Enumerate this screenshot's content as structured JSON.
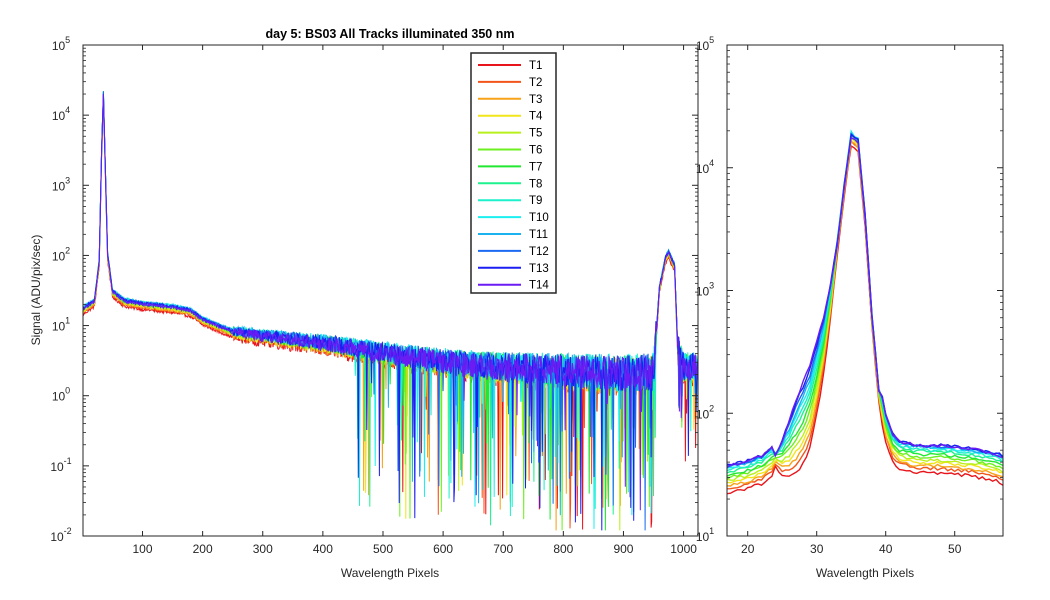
{
  "chart_data": [
    {
      "type": "line",
      "title": "day 5: BS03   All Tracks illuminated   350 nm",
      "xlabel": "Wavelength Pixels",
      "ylabel": "Signal (ADU/pix/sec)",
      "xlim": [
        1,
        1024
      ],
      "ylim": [
        0.01,
        100000
      ],
      "yscale": "log",
      "grid": false,
      "legend_placement": "top-center",
      "x_ticks": [
        100,
        200,
        300,
        400,
        500,
        600,
        700,
        800,
        900,
        1000
      ],
      "x_tick_labels": [
        "100",
        "200",
        "300",
        "400",
        "500",
        "600",
        "700",
        "800",
        "900",
        "1000"
      ],
      "y_ticks": [
        0.01,
        0.1,
        1,
        10,
        100,
        1000,
        10000,
        100000
      ],
      "y_tick_labels": [
        {
          "base": "10",
          "exp": "-2"
        },
        {
          "base": "10",
          "exp": "-1"
        },
        {
          "base": "10",
          "exp": "0"
        },
        {
          "base": "10",
          "exp": "1"
        },
        {
          "base": "10",
          "exp": "2"
        },
        {
          "base": "10",
          "exp": "3"
        },
        {
          "base": "10",
          "exp": "4"
        },
        {
          "base": "10",
          "exp": "5"
        }
      ],
      "series_shape": {
        "x": [
          1,
          20,
          28,
          32,
          35,
          38,
          42,
          50,
          70,
          100,
          150,
          180,
          200,
          250,
          300,
          400,
          500,
          600,
          700,
          800,
          900,
          950,
          960,
          970,
          975,
          985,
          990,
          1000,
          1024
        ],
        "y": [
          17,
          22,
          80,
          3000,
          20000,
          2000,
          100,
          30,
          22,
          20,
          18,
          16,
          12,
          8,
          7,
          5.5,
          4,
          3,
          2.5,
          2.2,
          2,
          2,
          35,
          90,
          110,
          70,
          5,
          2.5,
          2.5
        ]
      },
      "series": [
        {
          "name": "T1",
          "color": "#e8141b",
          "scale": 0.85
        },
        {
          "name": "T2",
          "color": "#f2551c",
          "scale": 0.9
        },
        {
          "name": "T3",
          "color": "#f7a219",
          "scale": 0.92
        },
        {
          "name": "T4",
          "color": "#f2e51c",
          "scale": 0.95
        },
        {
          "name": "T5",
          "color": "#b9f01c",
          "scale": 0.97
        },
        {
          "name": "T6",
          "color": "#6cf01f",
          "scale": 1.0
        },
        {
          "name": "T7",
          "color": "#23e832",
          "scale": 1.02
        },
        {
          "name": "T8",
          "color": "#1cf28d",
          "scale": 1.05
        },
        {
          "name": "T9",
          "color": "#1cf0cc",
          "scale": 1.06
        },
        {
          "name": "T10",
          "color": "#1ceff0",
          "scale": 1.07
        },
        {
          "name": "T11",
          "color": "#1ab2f0",
          "scale": 1.06
        },
        {
          "name": "T12",
          "color": "#1c6af2",
          "scale": 1.05
        },
        {
          "name": "T13",
          "color": "#1c1ef2",
          "scale": 1.04
        },
        {
          "name": "T14",
          "color": "#6a1cf2",
          "scale": 1.0
        }
      ]
    },
    {
      "type": "line",
      "title": "",
      "xlabel": "Wavelength Pixels",
      "ylabel": "",
      "xlim": [
        17,
        57
      ],
      "ylim": [
        10,
        100000
      ],
      "yscale": "log",
      "grid": false,
      "x_ticks": [
        20,
        30,
        40,
        50
      ],
      "x_tick_labels": [
        "20",
        "30",
        "40",
        "50"
      ],
      "y_ticks": [
        10,
        100,
        1000,
        10000,
        100000
      ],
      "y_tick_labels": [
        {
          "base": "10",
          "exp": "1"
        },
        {
          "base": "10",
          "exp": "2"
        },
        {
          "base": "10",
          "exp": "3"
        },
        {
          "base": "10",
          "exp": "4"
        },
        {
          "base": "10",
          "exp": "5"
        }
      ],
      "series_shape": {
        "x": [
          17,
          18,
          20,
          22,
          23,
          25,
          26,
          27,
          28,
          29,
          30,
          31,
          32,
          33,
          34,
          35,
          36,
          37,
          38,
          39,
          40,
          41,
          42,
          44,
          46,
          48,
          50,
          52,
          54,
          56,
          57
        ],
        "y": [
          30,
          31,
          33,
          36,
          40,
          48,
          58,
          75,
          95,
          130,
          220,
          400,
          900,
          2400,
          7000,
          18000,
          16000,
          4000,
          600,
          150,
          80,
          55,
          48,
          45,
          44,
          44,
          43,
          42,
          40,
          38,
          36
        ]
      }
    }
  ]
}
